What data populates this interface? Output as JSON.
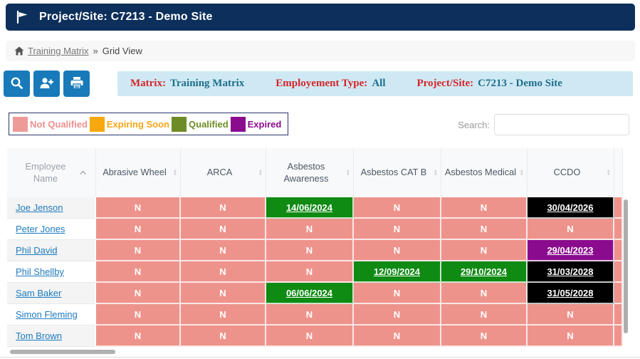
{
  "header": {
    "title": "Project/Site: C7213 - Demo Site"
  },
  "breadcrumb": {
    "link": "Training Matrix",
    "separator": "»",
    "current": "Grid View"
  },
  "toolbar": {
    "buttons": [
      {
        "name": "search",
        "icon": "magnifier-icon"
      },
      {
        "name": "add-user",
        "icon": "person-plus-icon"
      },
      {
        "name": "print",
        "icon": "printer-icon"
      }
    ],
    "info": [
      {
        "label": "Matrix:",
        "value": "Training Matrix"
      },
      {
        "label": "Employement Type:",
        "value": "All"
      },
      {
        "label": "Project/Site:",
        "value": "C7213 - Demo Site"
      }
    ]
  },
  "legend": {
    "items": [
      {
        "label": "Not Qualified",
        "color": "#ee9a97",
        "text_color": "#ef8f8d"
      },
      {
        "label": "Expiring Soon",
        "color": "#f7a80e",
        "text_color": "#f7a516"
      },
      {
        "label": "Qualified",
        "color": "#6d8b26",
        "text_color": "#6d8b26"
      },
      {
        "label": "Expired",
        "color": "#8a0b8e",
        "text_color": "#8a0b8e"
      }
    ]
  },
  "search": {
    "label": "Search:",
    "value": ""
  },
  "table": {
    "columns": [
      {
        "label": "Employee Name",
        "sort": "asc"
      },
      {
        "label": "Abrasive Wheel",
        "sort": "both"
      },
      {
        "label": "ARCA",
        "sort": "both"
      },
      {
        "label": "Asbestos Awareness",
        "sort": "both"
      },
      {
        "label": "Asbestos CAT B",
        "sort": "both"
      },
      {
        "label": "Asbestos Medical",
        "sort": "both"
      },
      {
        "label": "CCDO",
        "sort": "both"
      }
    ],
    "status_colors": {
      "not_qualified": "#ee938c",
      "qualified": "#0f8a13",
      "valid": "#000000",
      "expired": "#8a0b8e"
    },
    "rows": [
      {
        "name": "Joe Jenson",
        "cells": [
          {
            "text": "N",
            "status": "not_qualified"
          },
          {
            "text": "N",
            "status": "not_qualified"
          },
          {
            "text": "14/06/2024",
            "status": "qualified"
          },
          {
            "text": "N",
            "status": "not_qualified"
          },
          {
            "text": "N",
            "status": "not_qualified"
          },
          {
            "text": "30/04/2026",
            "status": "valid"
          }
        ]
      },
      {
        "name": "Peter Jones",
        "cells": [
          {
            "text": "N",
            "status": "not_qualified"
          },
          {
            "text": "N",
            "status": "not_qualified"
          },
          {
            "text": "N",
            "status": "not_qualified"
          },
          {
            "text": "N",
            "status": "not_qualified"
          },
          {
            "text": "N",
            "status": "not_qualified"
          },
          {
            "text": "N",
            "status": "not_qualified"
          }
        ]
      },
      {
        "name": "Phil David",
        "cells": [
          {
            "text": "N",
            "status": "not_qualified"
          },
          {
            "text": "N",
            "status": "not_qualified"
          },
          {
            "text": "N",
            "status": "not_qualified"
          },
          {
            "text": "N",
            "status": "not_qualified"
          },
          {
            "text": "N",
            "status": "not_qualified"
          },
          {
            "text": "29/04/2023",
            "status": "expired"
          }
        ]
      },
      {
        "name": "Phil Shellby",
        "cells": [
          {
            "text": "N",
            "status": "not_qualified"
          },
          {
            "text": "N",
            "status": "not_qualified"
          },
          {
            "text": "N",
            "status": "not_qualified"
          },
          {
            "text": "12/09/2024",
            "status": "qualified"
          },
          {
            "text": "29/10/2024",
            "status": "qualified"
          },
          {
            "text": "31/03/2028",
            "status": "valid"
          }
        ]
      },
      {
        "name": "Sam Baker",
        "cells": [
          {
            "text": "N",
            "status": "not_qualified"
          },
          {
            "text": "N",
            "status": "not_qualified"
          },
          {
            "text": "06/06/2024",
            "status": "qualified"
          },
          {
            "text": "N",
            "status": "not_qualified"
          },
          {
            "text": "N",
            "status": "not_qualified"
          },
          {
            "text": "31/05/2028",
            "status": "valid"
          }
        ]
      },
      {
        "name": "Simon Fleming",
        "cells": [
          {
            "text": "N",
            "status": "not_qualified"
          },
          {
            "text": "N",
            "status": "not_qualified"
          },
          {
            "text": "N",
            "status": "not_qualified"
          },
          {
            "text": "N",
            "status": "not_qualified"
          },
          {
            "text": "N",
            "status": "not_qualified"
          },
          {
            "text": "N",
            "status": "not_qualified"
          }
        ]
      },
      {
        "name": "Tom Brown",
        "cells": [
          {
            "text": "N",
            "status": "not_qualified"
          },
          {
            "text": "N",
            "status": "not_qualified"
          },
          {
            "text": "N",
            "status": "not_qualified"
          },
          {
            "text": "N",
            "status": "not_qualified"
          },
          {
            "text": "N",
            "status": "not_qualified"
          },
          {
            "text": "N",
            "status": "not_qualified"
          }
        ]
      }
    ]
  }
}
